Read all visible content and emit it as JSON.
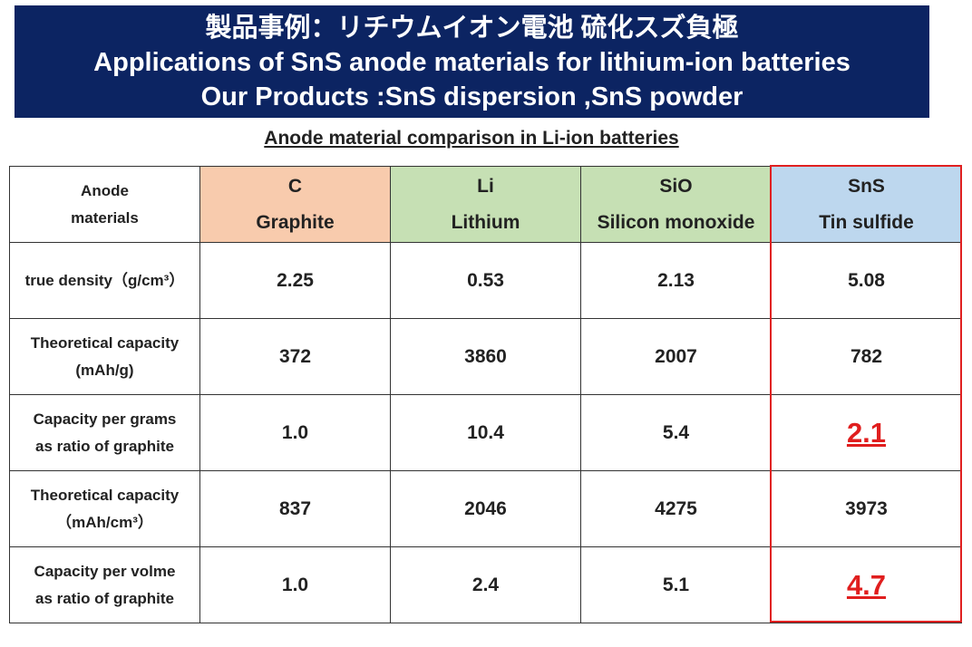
{
  "header": {
    "lines": [
      "製品事例：リチウムイオン電池 硫化スズ負極",
      "Applications of SnS anode materials for lithium-ion batteries",
      "Our Products :SnS dispersion ,SnS powder"
    ]
  },
  "table": {
    "caption": "Anode material comparison in Li-ion batteries",
    "columns": [
      [
        "Anode",
        "materials"
      ],
      [
        "C",
        "Graphite"
      ],
      [
        "Li",
        "Lithium"
      ],
      [
        "SiO",
        "Silicon monoxide"
      ],
      [
        "SnS",
        "Tin sulfide"
      ]
    ],
    "rows": [
      [
        [
          "true density（g/cm³）"
        ],
        "2.25",
        "0.53",
        "2.13",
        "5.08"
      ],
      [
        [
          "Theoretical capacity",
          "(mAh/g)"
        ],
        "372",
        "3860",
        "2007",
        "782"
      ],
      [
        [
          "Capacity per grams",
          "as ratio of graphite"
        ],
        "1.0",
        "10.4",
        "5.4",
        "2.1"
      ],
      [
        [
          "Theoretical capacity",
          "（mAh/cm³）"
        ],
        "837",
        "2046",
        "4275",
        "3973"
      ],
      [
        [
          "Capacity per volme",
          "as ratio of graphite"
        ],
        "1.0",
        "2.4",
        "5.1",
        "4.7"
      ]
    ]
  }
}
